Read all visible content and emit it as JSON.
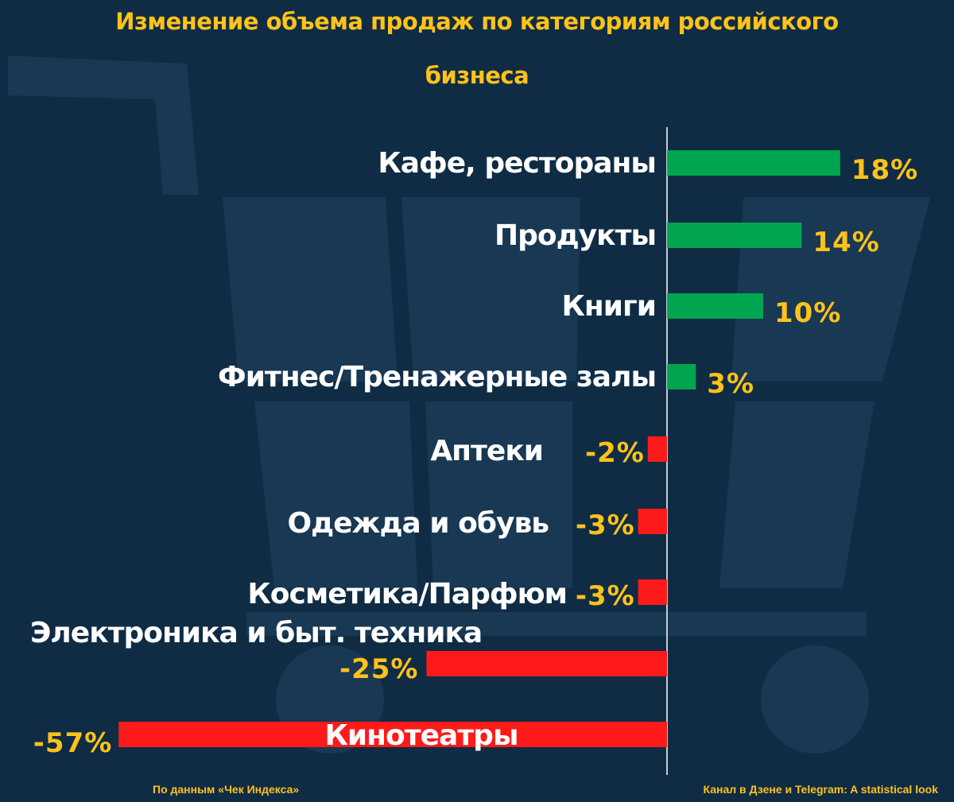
{
  "title_line1": "Изменение объема продаж по категориям российского",
  "title_line2": "бизнеса",
  "footer_left": "По данным «Чек Индекса»",
  "footer_right": "Канал в Дзене и Telegram: A statistical look",
  "colors": {
    "background": "#0f2c44",
    "positive": "#00b050",
    "negative": "#ff1a1a",
    "label": "#ffffff",
    "value": "#ffc21a"
  },
  "chart_data": {
    "type": "bar",
    "orientation": "horizontal",
    "title": "Изменение объема продаж по категориям российского бизнеса",
    "categories": [
      "Кафе, рестораны",
      "Продукты",
      "Книги",
      "Фитнес/Тренажерные залы",
      "Аптеки",
      "Одежда и обувь",
      "Косметика/Парфюм",
      "Электроника и быт. техника",
      "Кинотеатры"
    ],
    "values": [
      18,
      14,
      10,
      3,
      -2,
      -3,
      -3,
      -25,
      -57
    ],
    "value_labels": [
      "18%",
      "14%",
      "10%",
      "3%",
      "-2%",
      "-3%",
      "-3%",
      "-25%",
      "-57%"
    ],
    "unit": "%",
    "grid": false,
    "legend": "none"
  }
}
